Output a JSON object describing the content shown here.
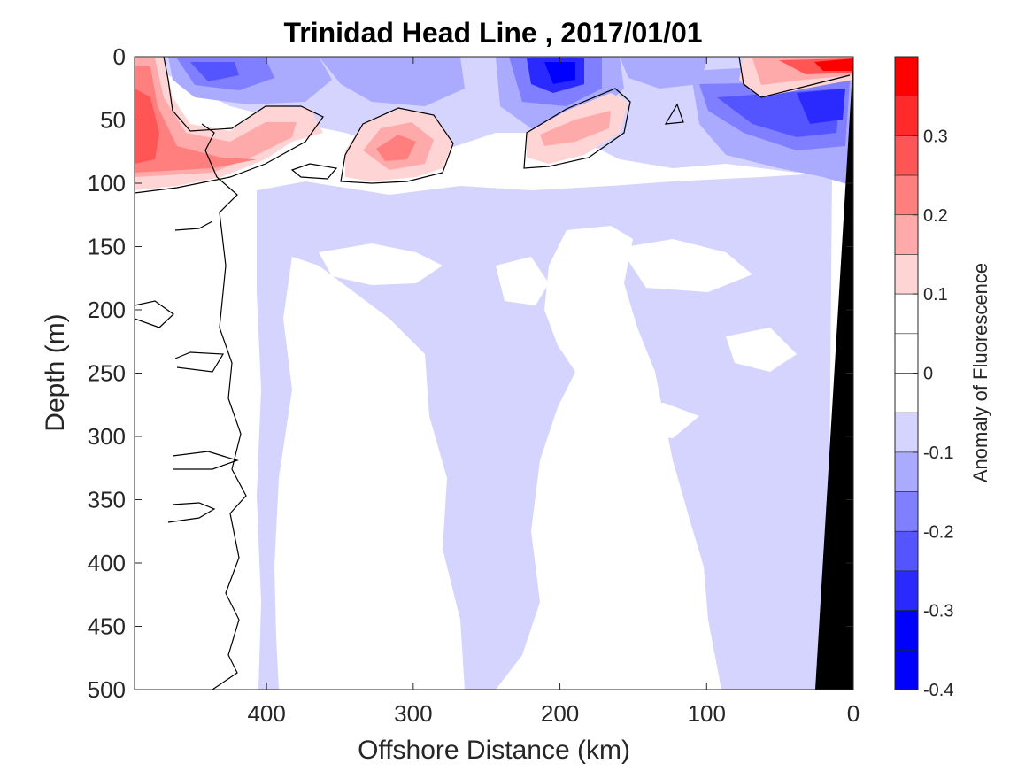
{
  "chart_data": {
    "type": "heatmap",
    "title": "Trinidad Head Line , 2017/01/01",
    "xlabel": "Offshore Distance (km)",
    "ylabel": "Depth (m)",
    "xlim": [
      490,
      0
    ],
    "ylim": [
      500,
      0
    ],
    "x_reversed": true,
    "y_reversed": true,
    "xticks": [
      400,
      300,
      200,
      100,
      0
    ],
    "yticks": [
      0,
      50,
      100,
      150,
      200,
      250,
      300,
      350,
      400,
      450,
      500
    ],
    "colorbar": {
      "label": "Anomaly of Fluorescence",
      "range": [
        -0.4,
        0.4
      ],
      "ticks": [
        0.3,
        0.2,
        0.1,
        0,
        -0.1,
        -0.2,
        -0.3,
        -0.4
      ],
      "levels": [
        {
          "from": 0.35,
          "to": 0.4,
          "color": "#ff0000"
        },
        {
          "from": 0.3,
          "to": 0.35,
          "color": "#ff2a2a"
        },
        {
          "from": 0.25,
          "to": 0.3,
          "color": "#ff5555"
        },
        {
          "from": 0.2,
          "to": 0.25,
          "color": "#ff7f7f"
        },
        {
          "from": 0.15,
          "to": 0.2,
          "color": "#ffaaaa"
        },
        {
          "from": 0.1,
          "to": 0.15,
          "color": "#ffd4d4"
        },
        {
          "from": 0.05,
          "to": 0.1,
          "color": "#ffffff"
        },
        {
          "from": 0.0,
          "to": 0.05,
          "color": "#ffffff"
        },
        {
          "from": -0.05,
          "to": 0.0,
          "color": "#ffffff"
        },
        {
          "from": -0.1,
          "to": -0.05,
          "color": "#d4d4ff"
        },
        {
          "from": -0.15,
          "to": -0.1,
          "color": "#aaaaff"
        },
        {
          "from": -0.2,
          "to": -0.15,
          "color": "#7f7fff"
        },
        {
          "from": -0.25,
          "to": -0.2,
          "color": "#5555ff"
        },
        {
          "from": -0.3,
          "to": -0.25,
          "color": "#2a2aff"
        },
        {
          "from": -0.35,
          "to": -0.3,
          "color": "#0000ff"
        },
        {
          "from": -0.4,
          "to": -0.35,
          "color": "#0000ff"
        }
      ]
    },
    "features": [
      {
        "name": "positive-anomaly-west-surface",
        "anomaly": 0.3,
        "x": [
          490,
          420
        ],
        "depth": [
          0,
          110
        ]
      },
      {
        "name": "positive-anomaly-310km",
        "anomaly": 0.2,
        "x": [
          345,
          280
        ],
        "depth": [
          40,
          100
        ]
      },
      {
        "name": "positive-anomaly-175km",
        "anomaly": 0.15,
        "x": [
          225,
          160
        ],
        "depth": [
          35,
          90
        ]
      },
      {
        "name": "positive-anomaly-coastal-surface",
        "anomaly": 0.35,
        "x": [
          90,
          0
        ],
        "depth": [
          0,
          30
        ]
      },
      {
        "name": "negative-anomaly-surface-450-370km",
        "anomaly": -0.25,
        "x": [
          470,
          370
        ],
        "depth": [
          0,
          50
        ]
      },
      {
        "name": "negative-anomaly-surface-200km",
        "anomaly": -0.35,
        "x": [
          235,
          160
        ],
        "depth": [
          0,
          45
        ]
      },
      {
        "name": "negative-anomaly-coastal",
        "anomaly": -0.3,
        "x": [
          110,
          10
        ],
        "depth": [
          10,
          85
        ]
      },
      {
        "name": "weak-negative-anomaly-deep-band",
        "anomaly": -0.1,
        "x": [
          420,
          30
        ],
        "depth": [
          100,
          500
        ]
      }
    ],
    "zero_contour": true,
    "bathymetry": {
      "color": "#000000",
      "surface_x": 0,
      "bottom_x": 25
    }
  },
  "colors": {
    "bathymetry": "#000000",
    "axis": "#262626",
    "background": "#ffffff"
  }
}
